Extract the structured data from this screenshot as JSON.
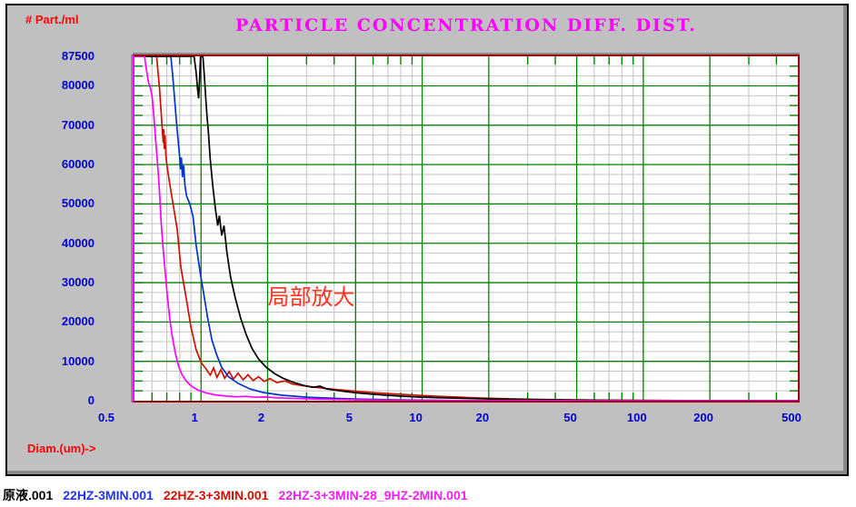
{
  "panel": {
    "background": "#c0c0c0"
  },
  "legend": {
    "items": [
      {
        "label": "原液.001",
        "color": "#000000"
      },
      {
        "label": "22HZ-3MIN.001",
        "color": "#2233ee"
      },
      {
        "label": "22HZ-3+3MIN.001",
        "color": "#cc1100"
      },
      {
        "label": "22HZ-3+3MIN-28_9HZ-2MIN.001",
        "color": "#ee22ee"
      }
    ]
  },
  "chart_data": {
    "type": "line",
    "title": "PARTICLE CONCENTRATION DIFF. DIST.",
    "title_color": "#ff00ff",
    "xlabel": "Diam.(um)->",
    "ylabel": "# Part./ml",
    "x_scale": "log",
    "xlim": [
      0.5,
      500
    ],
    "ylim": [
      0,
      87500
    ],
    "x_ticks_major": [
      0.5,
      1,
      2,
      5,
      10,
      20,
      50,
      100,
      200,
      500
    ],
    "x_ticks_minor": [
      0.6,
      0.7,
      0.8,
      0.9,
      3,
      4,
      6,
      7,
      8,
      9,
      30,
      40,
      60,
      70,
      80,
      90,
      300,
      400
    ],
    "y_ticks": [
      87500,
      80000,
      70000,
      60000,
      50000,
      40000,
      30000,
      20000,
      10000,
      0
    ],
    "y_tick_step_major": 10000,
    "y_tick_step_minor": 2500,
    "grid_major_color": "#008000",
    "grid_minor_color": "#c4c4c4",
    "border_color": "#990000",
    "left_axis_color": "#ff00ff",
    "tick_label_color": "#0000cc",
    "annotation": {
      "text": "局部放大",
      "x": 2.0,
      "y": 24500,
      "color": "#ff3322",
      "font_size": 24
    },
    "legend_position": "bottom-outside",
    "grid": "on",
    "series": [
      {
        "name": "22HZ-3+3MIN.001",
        "color": "#cc1100",
        "points": [
          [
            0.5,
            87500
          ],
          [
            0.63,
            87500
          ],
          [
            0.64,
            83000
          ],
          [
            0.65,
            79000
          ],
          [
            0.655,
            76000
          ],
          [
            0.66,
            73500
          ],
          [
            0.665,
            70500
          ],
          [
            0.67,
            68000
          ],
          [
            0.675,
            65500
          ],
          [
            0.678,
            69000
          ],
          [
            0.682,
            64000
          ],
          [
            0.687,
            67500
          ],
          [
            0.693,
            62500
          ],
          [
            0.7,
            60000
          ],
          [
            0.72,
            55500
          ],
          [
            0.75,
            49500
          ],
          [
            0.78,
            43500
          ],
          [
            0.81,
            34000
          ],
          [
            0.86,
            25500
          ],
          [
            0.9,
            18800
          ],
          [
            0.95,
            13000
          ],
          [
            1.0,
            9700
          ],
          [
            1.05,
            8200
          ],
          [
            1.1,
            6500
          ],
          [
            1.14,
            8300
          ],
          [
            1.18,
            5900
          ],
          [
            1.23,
            7900
          ],
          [
            1.28,
            5700
          ],
          [
            1.34,
            7400
          ],
          [
            1.4,
            5500
          ],
          [
            1.47,
            7000
          ],
          [
            1.55,
            5300
          ],
          [
            1.63,
            6600
          ],
          [
            1.72,
            5100
          ],
          [
            1.82,
            6100
          ],
          [
            1.93,
            4900
          ],
          [
            2.05,
            5600
          ],
          [
            2.2,
            4600
          ],
          [
            2.4,
            5000
          ],
          [
            2.6,
            4200
          ],
          [
            2.9,
            3800
          ],
          [
            3.3,
            3400
          ],
          [
            3.8,
            3000
          ],
          [
            4.4,
            2700
          ],
          [
            5.2,
            2300
          ],
          [
            6.2,
            2000
          ],
          [
            7.5,
            1700
          ],
          [
            9,
            1450
          ],
          [
            11,
            1200
          ],
          [
            14,
            950
          ],
          [
            18,
            700
          ],
          [
            24,
            500
          ],
          [
            32,
            350
          ],
          [
            45,
            230
          ],
          [
            65,
            150
          ],
          [
            100,
            90
          ],
          [
            160,
            50
          ],
          [
            260,
            25
          ],
          [
            400,
            10
          ],
          [
            500,
            5
          ]
        ]
      },
      {
        "name": "22HZ-3MIN.001",
        "color": "#0033cc",
        "points": [
          [
            0.5,
            87500
          ],
          [
            0.73,
            87500
          ],
          [
            0.745,
            82500
          ],
          [
            0.76,
            76500
          ],
          [
            0.775,
            70500
          ],
          [
            0.79,
            65500
          ],
          [
            0.8,
            62000
          ],
          [
            0.807,
            58800
          ],
          [
            0.815,
            61800
          ],
          [
            0.824,
            56800
          ],
          [
            0.834,
            59800
          ],
          [
            0.845,
            54800
          ],
          [
            0.86,
            52000
          ],
          [
            0.89,
            50000
          ],
          [
            0.92,
            46800
          ],
          [
            0.95,
            39600
          ],
          [
            0.99,
            32700
          ],
          [
            1.03,
            26900
          ],
          [
            1.07,
            21200
          ],
          [
            1.12,
            15400
          ],
          [
            1.18,
            11500
          ],
          [
            1.24,
            8500
          ],
          [
            1.33,
            6100
          ],
          [
            1.47,
            4400
          ],
          [
            1.66,
            3000
          ],
          [
            1.9,
            2100
          ],
          [
            2.3,
            1400
          ],
          [
            3.0,
            900
          ],
          [
            4.0,
            600
          ],
          [
            5.5,
            380
          ],
          [
            7.5,
            240
          ],
          [
            10,
            140
          ],
          [
            13,
            70
          ],
          [
            16,
            25
          ],
          [
            18,
            5
          ]
        ]
      },
      {
        "name": "原液.001",
        "color": "#000000",
        "points": [
          [
            0.5,
            87500
          ],
          [
            0.93,
            87500
          ],
          [
            0.95,
            83500
          ],
          [
            0.965,
            79000
          ],
          [
            0.975,
            76800
          ],
          [
            0.985,
            82000
          ],
          [
            0.995,
            87500
          ],
          [
            1.02,
            87500
          ],
          [
            1.035,
            82500
          ],
          [
            1.05,
            77000
          ],
          [
            1.065,
            72000
          ],
          [
            1.08,
            68000
          ],
          [
            1.1,
            61500
          ],
          [
            1.13,
            54500
          ],
          [
            1.16,
            49000
          ],
          [
            1.19,
            44500
          ],
          [
            1.21,
            47000
          ],
          [
            1.24,
            42000
          ],
          [
            1.27,
            44500
          ],
          [
            1.31,
            37500
          ],
          [
            1.36,
            31500
          ],
          [
            1.43,
            26000
          ],
          [
            1.51,
            21000
          ],
          [
            1.6,
            16800
          ],
          [
            1.7,
            13300
          ],
          [
            1.82,
            10600
          ],
          [
            1.97,
            8500
          ],
          [
            2.15,
            6900
          ],
          [
            2.35,
            5700
          ],
          [
            2.6,
            4700
          ],
          [
            2.9,
            3900
          ],
          [
            3.2,
            3400
          ],
          [
            3.45,
            3700
          ],
          [
            3.7,
            3000
          ],
          [
            4.0,
            2700
          ],
          [
            4.4,
            2400
          ],
          [
            5.0,
            2000
          ],
          [
            5.8,
            1700
          ],
          [
            6.8,
            1400
          ],
          [
            8,
            1150
          ],
          [
            9.5,
            950
          ],
          [
            11.5,
            780
          ],
          [
            14,
            640
          ],
          [
            17,
            520
          ],
          [
            21,
            420
          ],
          [
            27,
            330
          ],
          [
            35,
            250
          ],
          [
            46,
            180
          ],
          [
            62,
            120
          ],
          [
            90,
            70
          ],
          [
            140,
            40
          ],
          [
            230,
            20
          ],
          [
            380,
            8
          ],
          [
            500,
            4
          ]
        ]
      },
      {
        "name": "22HZ-3+3MIN-28_9HZ-2MIN.001",
        "color": "#ff00ff",
        "points": [
          [
            0.5,
            87500
          ],
          [
            0.555,
            87500
          ],
          [
            0.565,
            84500
          ],
          [
            0.578,
            81000
          ],
          [
            0.59,
            79500
          ],
          [
            0.6,
            77500
          ],
          [
            0.608,
            74000
          ],
          [
            0.615,
            70500
          ],
          [
            0.623,
            66500
          ],
          [
            0.632,
            62000
          ],
          [
            0.64,
            58000
          ],
          [
            0.65,
            52500
          ],
          [
            0.66,
            45500
          ],
          [
            0.673,
            39000
          ],
          [
            0.688,
            33000
          ],
          [
            0.703,
            27000
          ],
          [
            0.72,
            21500
          ],
          [
            0.74,
            16500
          ],
          [
            0.765,
            12200
          ],
          [
            0.79,
            8900
          ],
          [
            0.82,
            6600
          ],
          [
            0.86,
            4900
          ],
          [
            0.91,
            3600
          ],
          [
            0.97,
            2700
          ],
          [
            1.05,
            2000
          ],
          [
            1.15,
            1500
          ],
          [
            1.28,
            1200
          ],
          [
            1.45,
            1000
          ],
          [
            1.6,
            1100
          ],
          [
            1.75,
            880
          ],
          [
            1.95,
            950
          ],
          [
            2.2,
            750
          ],
          [
            2.5,
            620
          ],
          [
            2.9,
            500
          ],
          [
            3.4,
            400
          ],
          [
            4.2,
            300
          ],
          [
            5.2,
            230
          ],
          [
            6.5,
            170
          ],
          [
            8.5,
            120
          ],
          [
            11,
            85
          ],
          [
            15,
            55
          ],
          [
            21,
            35
          ],
          [
            30,
            22
          ],
          [
            45,
            14
          ],
          [
            70,
            8
          ],
          [
            120,
            4
          ],
          [
            250,
            2
          ],
          [
            500,
            1
          ]
        ]
      }
    ]
  }
}
